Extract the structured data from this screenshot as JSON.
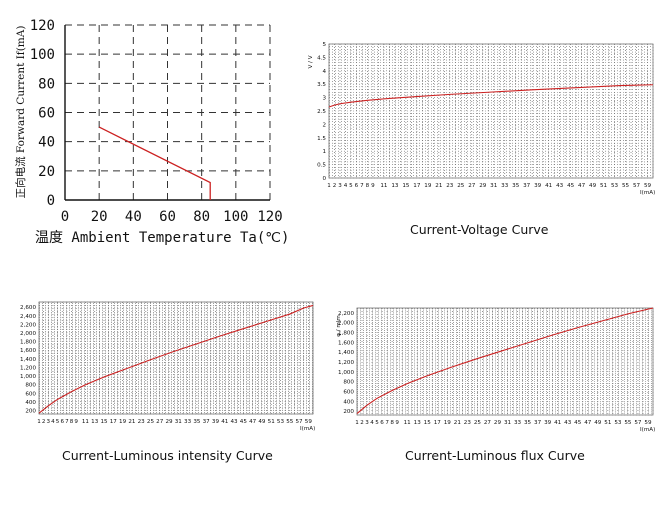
{
  "chart_data": [
    {
      "type": "line",
      "title": "",
      "xlabel": "温度 Ambient Temperature Ta(℃)",
      "ylabel": "正向电流 Forward Current If(mA)",
      "xlim": [
        0,
        120
      ],
      "ylim": [
        0,
        120
      ],
      "xticks": [
        "0",
        "20",
        "40",
        "60",
        "80",
        "100",
        "120"
      ],
      "yticks": [
        "0",
        "20",
        "40",
        "60",
        "80",
        "100",
        "120"
      ],
      "grid": "dashed",
      "series": [
        {
          "color": "#cc2222",
          "x": [
            20,
            85,
            85
          ],
          "y": [
            50,
            12,
            0
          ]
        }
      ]
    },
    {
      "type": "line",
      "title": "Current-Voltage Curve",
      "xlabel": "I(mA)",
      "ylabel": "V / V",
      "xlim": [
        1,
        60
      ],
      "ylim": [
        0,
        5
      ],
      "xticks": [
        "1",
        "2",
        "3",
        "4",
        "5",
        "6",
        "7",
        "8",
        "9",
        "11",
        "13",
        "15",
        "17",
        "19",
        "21",
        "23",
        "25",
        "27",
        "29",
        "31",
        "33",
        "35",
        "37",
        "39",
        "41",
        "43",
        "45",
        "47",
        "49",
        "51",
        "53",
        "55",
        "57",
        "59"
      ],
      "yticks": [
        "0",
        "0.5",
        "1",
        "1.5",
        "2",
        "2.5",
        "3",
        "3.5",
        "4",
        "4.5",
        "5"
      ],
      "grid": "dotted",
      "series": [
        {
          "color": "#cc2222",
          "x": [
            1,
            2,
            3,
            5,
            8,
            12,
            17,
            23,
            30,
            38,
            46,
            54,
            60
          ],
          "y": [
            2.65,
            2.72,
            2.77,
            2.83,
            2.9,
            2.97,
            3.04,
            3.12,
            3.2,
            3.29,
            3.37,
            3.45,
            3.48
          ]
        }
      ]
    },
    {
      "type": "line",
      "title": "Current-Luminous intensity Curve",
      "xlabel": "I(mA)",
      "ylabel": "",
      "xlim": [
        1,
        60
      ],
      "ylim": [
        120,
        2720
      ],
      "xticks": [
        "1",
        "2",
        "3",
        "4",
        "5",
        "6",
        "7",
        "8",
        "9",
        "11",
        "13",
        "15",
        "17",
        "19",
        "21",
        "23",
        "25",
        "27",
        "29",
        "31",
        "33",
        "35",
        "37",
        "39",
        "41",
        "43",
        "45",
        "47",
        "49",
        "51",
        "53",
        "55",
        "57",
        "59"
      ],
      "yticks": [
        "200",
        "400",
        "600",
        "800",
        "1,000",
        "1,200",
        "1,400",
        "1,600",
        "1,800",
        "2,000",
        "2,200",
        "2,400",
        "2,600"
      ],
      "grid": "dotted",
      "series": [
        {
          "color": "#cc2222",
          "x": [
            1,
            3,
            5,
            8,
            11,
            15,
            20,
            25,
            30,
            35,
            40,
            45,
            50,
            55,
            58,
            60
          ],
          "y": [
            140,
            310,
            460,
            640,
            800,
            980,
            1180,
            1380,
            1570,
            1750,
            1930,
            2100,
            2270,
            2440,
            2580,
            2640
          ]
        }
      ]
    },
    {
      "type": "line",
      "title": "Current-Luminous flux Curve",
      "xlabel": "I(mA)",
      "ylabel": "φ / mlm",
      "xlim": [
        1,
        60
      ],
      "ylim": [
        120,
        2300
      ],
      "xticks": [
        "1",
        "2",
        "3",
        "4",
        "5",
        "6",
        "7",
        "8",
        "9",
        "11",
        "13",
        "15",
        "17",
        "19",
        "21",
        "23",
        "25",
        "27",
        "29",
        "31",
        "33",
        "35",
        "37",
        "39",
        "41",
        "43",
        "45",
        "47",
        "49",
        "51",
        "53",
        "55",
        "57",
        "59"
      ],
      "yticks": [
        "200",
        "400",
        "600",
        "800",
        "1,000",
        "1,200",
        "1,400",
        "1,600",
        "1,800",
        "2,000",
        "2,200"
      ],
      "grid": "dotted",
      "series": [
        {
          "color": "#cc2222",
          "x": [
            1,
            3,
            5,
            8,
            11,
            15,
            20,
            25,
            30,
            35,
            40,
            45,
            50,
            55,
            60
          ],
          "y": [
            150,
            320,
            460,
            620,
            760,
            920,
            1100,
            1270,
            1430,
            1590,
            1750,
            1900,
            2040,
            2180,
            2300
          ]
        }
      ]
    }
  ]
}
